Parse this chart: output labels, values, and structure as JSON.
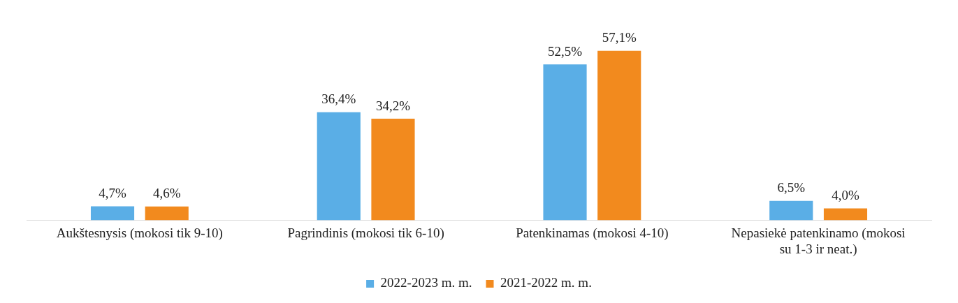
{
  "chart_data": {
    "type": "bar",
    "categories": [
      "Aukštesnysis (mokosi tik 9-10)",
      "Pagrindinis (mokosi tik 6-10)",
      "Patenkinamas (mokosi 4-10)",
      "Nepasiekė patenkinamo (mokosi su 1-3 ir neat.)"
    ],
    "series": [
      {
        "name": "2022-2023 m. m.",
        "color": "#5aaee6",
        "values": [
          4.7,
          36.4,
          52.5,
          6.5
        ],
        "value_labels": [
          "4,7%",
          "36,4%",
          "52,5%",
          "6,5%"
        ]
      },
      {
        "name": "2021-2022 m. m.",
        "color": "#f28a1e",
        "values": [
          4.6,
          34.2,
          57.1,
          4.0
        ],
        "value_labels": [
          "4,6%",
          "34,2%",
          "57,1%",
          "4,0%"
        ]
      }
    ],
    "legend": "bottom",
    "grid": false
  }
}
